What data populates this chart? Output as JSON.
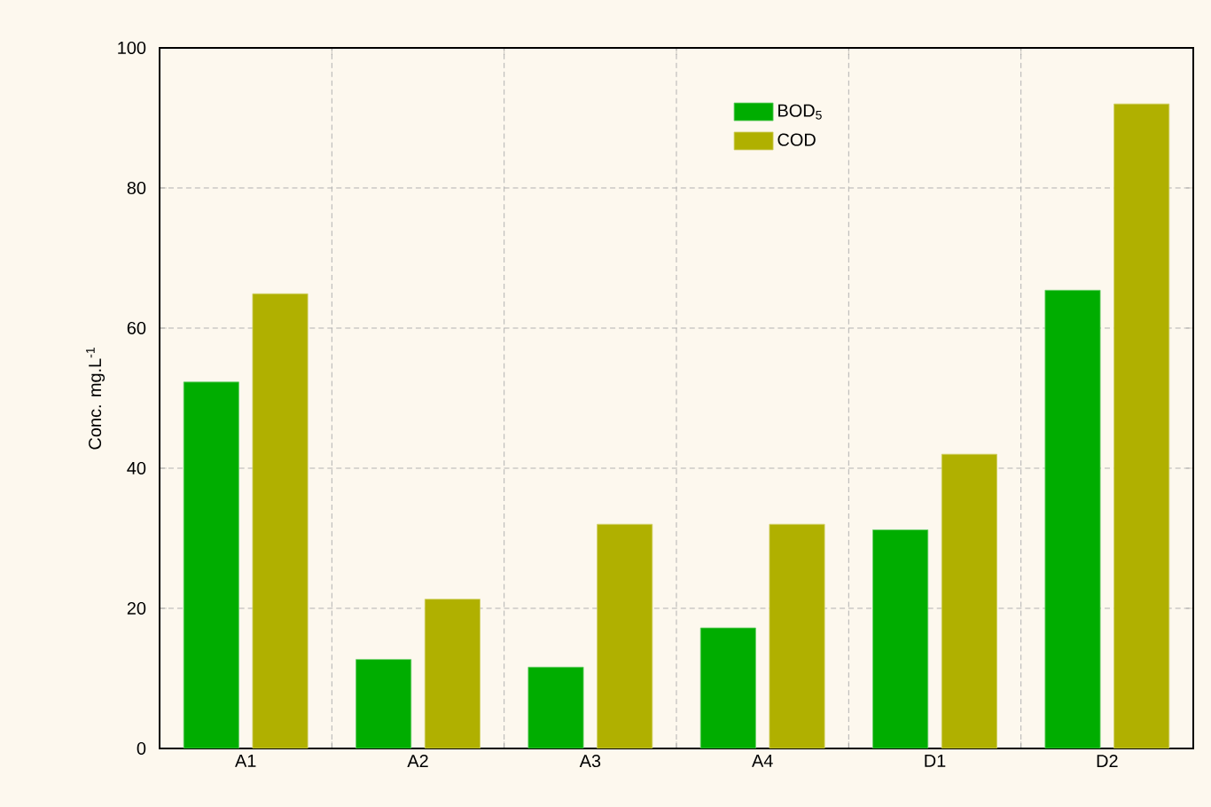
{
  "chart_data": {
    "type": "bar",
    "ylabel": "Conc. mg.L$^{-1}$",
    "categories": [
      "A1",
      "A2",
      "A3",
      "A4",
      "D1",
      "D2"
    ],
    "series": [
      {
        "name": "BOD$_{5}$",
        "color": "#00ad00",
        "values": [
          52.3,
          12.7,
          11.6,
          17.2,
          31.2,
          65.4
        ]
      },
      {
        "name": "COD",
        "color": "#b0b000",
        "values": [
          64.9,
          21.3,
          32.0,
          32.0,
          42.0,
          92.0
        ]
      }
    ],
    "ylim": [
      0,
      100
    ],
    "yticks": [
      0,
      20,
      40,
      60,
      80,
      100
    ],
    "grid": true,
    "legend": "top right"
  }
}
